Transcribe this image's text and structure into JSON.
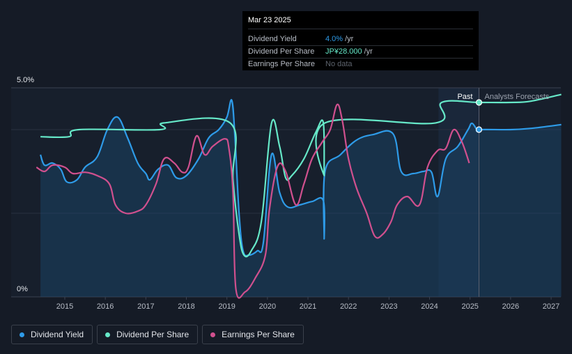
{
  "chart_data": {
    "type": "line",
    "x_range": [
      2014.3,
      2027.25
    ],
    "y_range_pct": [
      0,
      5.0
    ],
    "y_tick_labels": [
      "5.0%",
      "0%"
    ],
    "x_ticks": [
      "2015",
      "2016",
      "2017",
      "2018",
      "2019",
      "2020",
      "2021",
      "2022",
      "2023",
      "2024",
      "2025",
      "2026",
      "2027"
    ],
    "past_label": "Past",
    "forecast_label": "Analysts Forecasts",
    "forecast_start": 2025.22,
    "forecast_shade_start": 2024.22,
    "series": [
      {
        "name": "Dividend Yield",
        "color": "#2e9be8",
        "unit": "%",
        "points": [
          [
            2014.4,
            3.4
          ],
          [
            2014.5,
            3.15
          ],
          [
            2014.7,
            3.2
          ],
          [
            2014.9,
            3.05
          ],
          [
            2015.05,
            2.75
          ],
          [
            2015.3,
            2.8
          ],
          [
            2015.5,
            3.1
          ],
          [
            2015.8,
            3.35
          ],
          [
            2016.05,
            4.0
          ],
          [
            2016.3,
            4.3
          ],
          [
            2016.55,
            3.8
          ],
          [
            2016.8,
            3.2
          ],
          [
            2017.0,
            2.95
          ],
          [
            2017.1,
            2.8
          ],
          [
            2017.3,
            3.05
          ],
          [
            2017.55,
            3.15
          ],
          [
            2017.75,
            2.85
          ],
          [
            2018.0,
            2.9
          ],
          [
            2018.3,
            3.3
          ],
          [
            2018.55,
            3.8
          ],
          [
            2018.8,
            4.0
          ],
          [
            2019.0,
            4.3
          ],
          [
            2019.12,
            4.7
          ],
          [
            2019.2,
            3.8
          ],
          [
            2019.3,
            2.0
          ],
          [
            2019.4,
            1.1
          ],
          [
            2019.55,
            1.0
          ],
          [
            2019.75,
            1.1
          ],
          [
            2019.9,
            1.3
          ],
          [
            2020.1,
            3.4
          ],
          [
            2020.3,
            2.5
          ],
          [
            2020.5,
            2.15
          ],
          [
            2020.8,
            2.2
          ],
          [
            2021.1,
            2.28
          ],
          [
            2021.38,
            2.3
          ],
          [
            2021.4,
            1.4
          ],
          [
            2021.42,
            3.0
          ],
          [
            2021.8,
            3.4
          ],
          [
            2022.2,
            3.75
          ],
          [
            2022.6,
            3.88
          ],
          [
            2023.1,
            3.9
          ],
          [
            2023.3,
            3.0
          ],
          [
            2023.6,
            2.95
          ],
          [
            2023.85,
            3.0
          ],
          [
            2024.05,
            2.98
          ],
          [
            2024.2,
            2.4
          ],
          [
            2024.4,
            3.3
          ],
          [
            2024.7,
            3.6
          ],
          [
            2024.95,
            4.0
          ],
          [
            2025.05,
            4.15
          ],
          [
            2025.2,
            3.95
          ],
          [
            2025.22,
            4.0
          ],
          [
            2026.0,
            4.0
          ],
          [
            2026.5,
            4.03
          ],
          [
            2027.25,
            4.12
          ]
        ]
      },
      {
        "name": "Dividend Per Share",
        "color": "#66e8c8",
        "unit": "JP¥",
        "points": [
          [
            2014.4,
            3.83
          ],
          [
            2015.1,
            3.83
          ],
          [
            2015.35,
            4.0
          ],
          [
            2017.35,
            4.0
          ],
          [
            2017.45,
            4.16
          ],
          [
            2019.08,
            4.16
          ],
          [
            2019.15,
            2.8
          ],
          [
            2019.3,
            1.5
          ],
          [
            2019.42,
            1.0
          ],
          [
            2019.6,
            1.1
          ],
          [
            2019.85,
            1.8
          ],
          [
            2020.1,
            4.15
          ],
          [
            2020.3,
            3.6
          ],
          [
            2020.45,
            2.85
          ],
          [
            2020.6,
            2.9
          ],
          [
            2020.9,
            3.3
          ],
          [
            2021.2,
            3.95
          ],
          [
            2021.38,
            4.16
          ],
          [
            2021.4,
            2.9
          ],
          [
            2021.42,
            4.16
          ],
          [
            2024.15,
            4.16
          ],
          [
            2024.3,
            4.65
          ],
          [
            2025.22,
            4.65
          ],
          [
            2026.0,
            4.65
          ],
          [
            2026.5,
            4.68
          ],
          [
            2027.25,
            4.84
          ]
        ]
      },
      {
        "name": "Earnings Per Share",
        "color": "#d0508e",
        "unit": "",
        "points": [
          [
            2014.3,
            3.1
          ],
          [
            2014.5,
            3.0
          ],
          [
            2014.7,
            3.15
          ],
          [
            2015.0,
            3.1
          ],
          [
            2015.2,
            2.95
          ],
          [
            2015.5,
            2.98
          ],
          [
            2015.8,
            2.9
          ],
          [
            2016.1,
            2.7
          ],
          [
            2016.25,
            2.2
          ],
          [
            2016.5,
            2.0
          ],
          [
            2016.8,
            2.05
          ],
          [
            2017.0,
            2.2
          ],
          [
            2017.25,
            2.7
          ],
          [
            2017.45,
            3.3
          ],
          [
            2017.7,
            3.2
          ],
          [
            2017.9,
            2.98
          ],
          [
            2018.05,
            3.1
          ],
          [
            2018.25,
            3.85
          ],
          [
            2018.45,
            3.4
          ],
          [
            2018.65,
            3.6
          ],
          [
            2018.95,
            3.78
          ],
          [
            2019.05,
            3.55
          ],
          [
            2019.15,
            2.5
          ],
          [
            2019.22,
            0.2
          ],
          [
            2019.45,
            0.12
          ],
          [
            2019.7,
            0.45
          ],
          [
            2019.95,
            1.0
          ],
          [
            2020.05,
            2.1
          ],
          [
            2020.25,
            3.12
          ],
          [
            2020.45,
            3.0
          ],
          [
            2020.7,
            2.2
          ],
          [
            2020.9,
            2.7
          ],
          [
            2021.1,
            3.3
          ],
          [
            2021.35,
            3.7
          ],
          [
            2021.55,
            4.0
          ],
          [
            2021.72,
            4.6
          ],
          [
            2021.85,
            4.2
          ],
          [
            2022.0,
            3.3
          ],
          [
            2022.2,
            2.6
          ],
          [
            2022.45,
            2.0
          ],
          [
            2022.65,
            1.45
          ],
          [
            2022.85,
            1.5
          ],
          [
            2023.05,
            1.8
          ],
          [
            2023.2,
            2.2
          ],
          [
            2023.45,
            2.4
          ],
          [
            2023.75,
            2.2
          ],
          [
            2023.95,
            3.1
          ],
          [
            2024.2,
            3.5
          ],
          [
            2024.4,
            3.55
          ],
          [
            2024.6,
            4.0
          ],
          [
            2024.8,
            3.7
          ],
          [
            2024.98,
            3.2
          ]
        ]
      }
    ],
    "markers": [
      {
        "series": "Dividend Per Share",
        "x": 2025.22,
        "y": 4.65
      },
      {
        "series": "Dividend Yield",
        "x": 2025.22,
        "y": 4.0
      }
    ]
  },
  "tooltip": {
    "date": "Mar 23 2025",
    "rows": [
      {
        "label": "Dividend Yield",
        "value": "4.0%",
        "unit": "/yr"
      },
      {
        "label": "Dividend Per Share",
        "value": "JP¥28.000",
        "unit": "/yr"
      },
      {
        "label": "Earnings Per Share",
        "value": "No data",
        "unit": ""
      }
    ]
  },
  "legend": [
    {
      "label": "Dividend Yield",
      "color": "#2e9be8"
    },
    {
      "label": "Dividend Per Share",
      "color": "#66e8c8"
    },
    {
      "label": "Earnings Per Share",
      "color": "#d0508e"
    }
  ]
}
